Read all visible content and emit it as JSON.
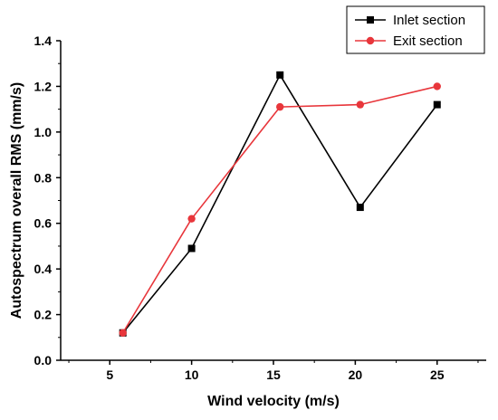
{
  "chart_data": {
    "type": "line",
    "xlabel": "Wind velocity (m/s)",
    "ylabel": "Autospectrum overall RMS (mm/s)",
    "xlim": [
      2,
      28
    ],
    "ylim": [
      0,
      1.4
    ],
    "xticks": [
      5,
      10,
      15,
      20,
      25
    ],
    "yticks": [
      0.0,
      0.2,
      0.4,
      0.6,
      0.8,
      1.0,
      1.2,
      1.4
    ],
    "ytick_labels": [
      "0.0",
      "0.2",
      "0.4",
      "0.6",
      "0.8",
      "1.0",
      "1.2",
      "1.4"
    ],
    "grid": false,
    "legend_position": "top-right",
    "series": [
      {
        "name": "Inlet section",
        "color": "#000000",
        "marker": "square",
        "x": [
          5.8,
          10.0,
          15.4,
          20.3,
          25.0
        ],
        "y": [
          0.12,
          0.49,
          1.25,
          0.67,
          1.12
        ]
      },
      {
        "name": "Exit section",
        "color": "#e8363b",
        "marker": "circle",
        "x": [
          5.8,
          10.0,
          15.4,
          20.3,
          25.0
        ],
        "y": [
          0.12,
          0.62,
          1.11,
          1.12,
          1.2
        ]
      }
    ]
  }
}
